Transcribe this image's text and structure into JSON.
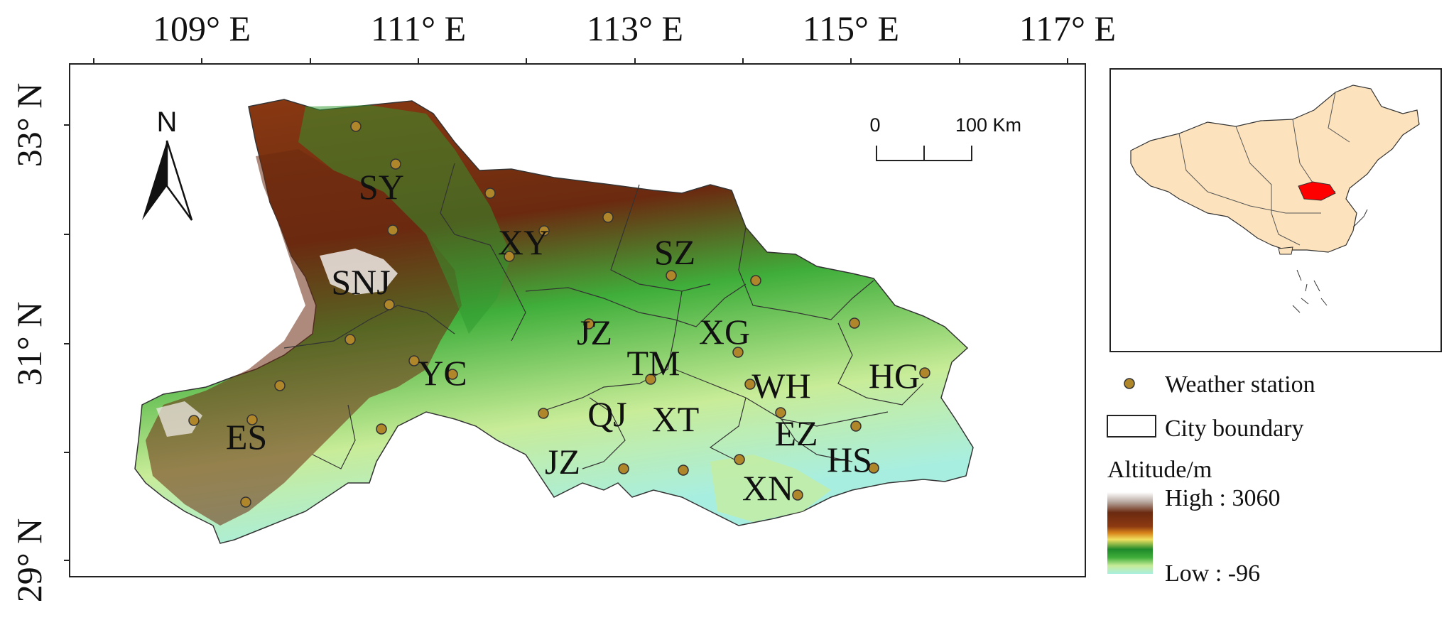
{
  "longitude_labels": [
    "109° E",
    "111° E",
    "113° E",
    "115° E",
    "117° E"
  ],
  "latitude_labels": [
    "33° N",
    "31° N",
    "29° N"
  ],
  "north_arrow": {
    "label": "N",
    "icon": "north-arrow-icon"
  },
  "scale_bar": {
    "start": "0",
    "end": "100 Km"
  },
  "city_labels": [
    "SY",
    "XY",
    "SZ",
    "SNJ",
    "JZ",
    "XG",
    "TM",
    "YC",
    "WH",
    "HG",
    "QJ",
    "XT",
    "EZ",
    "ES",
    "JZ",
    "HS",
    "XN"
  ],
  "legend": {
    "station_label": "Weather station",
    "boundary_label": "City boundary",
    "altitude_title": "Altitude/m",
    "high_label": "High : 3060",
    "low_label": "Low : -96",
    "altitude_high": 3060,
    "altitude_low": -96,
    "colors": {
      "high": "#ffffff",
      "brown_dark": "#6b2a10",
      "brown": "#8c3a12",
      "orange": "#d8841a",
      "yellow": "#f0e060",
      "green_dark": "#1f8a2a",
      "green": "#3fae3a",
      "green_light": "#c8ec98",
      "low": "#a8eee0",
      "station": "#b0862a",
      "hubei_inset": "#ff0000",
      "china_inset": "#fde3bd"
    }
  }
}
